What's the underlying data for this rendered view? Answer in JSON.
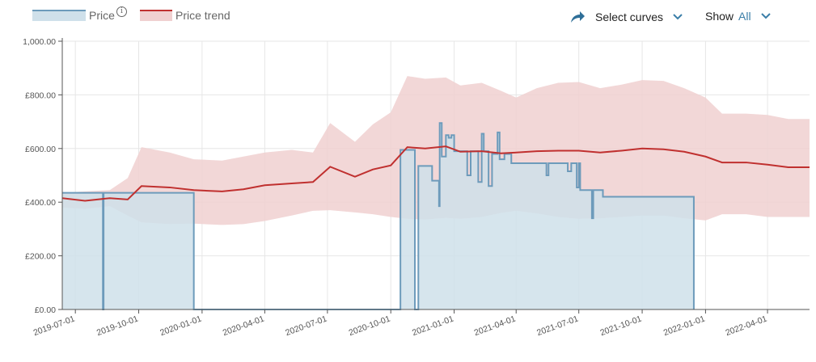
{
  "legend": {
    "price_label": "Price",
    "info_icon": "info-icon",
    "trend_label": "Price trend"
  },
  "controls": {
    "select_curves_label": "Select curves",
    "show_label": "Show",
    "show_value": "All"
  },
  "colors": {
    "price_line": "#6d9bbb",
    "price_fill": "#cfe0ea",
    "trend_line": "#c0302f",
    "trend_band": "#f0d0d0",
    "accent": "#3a7ea8"
  },
  "chart_data": {
    "type": "line",
    "x_type": "date",
    "x_range": [
      "2019-06-12",
      "2022-06-01"
    ],
    "ylim": [
      0,
      1000
    ],
    "y_ticks": [
      0,
      200,
      400,
      600,
      800,
      1000
    ],
    "y_tick_labels": [
      "£0.00",
      "£200.00",
      "£400.00",
      "£600.00",
      "£800.00",
      "1,000.00"
    ],
    "x_ticks": [
      "2019-07-01",
      "2019-10-01",
      "2020-01-01",
      "2020-04-01",
      "2020-07-01",
      "2020-10-01",
      "2021-01-01",
      "2021-04-01",
      "2021-07-01",
      "2021-10-01",
      "2022-01-01",
      "2022-04-01"
    ],
    "grid": true,
    "legend_position": "top-left",
    "series": [
      {
        "name": "Price",
        "style": "step-area",
        "points": [
          [
            "2019-06-12",
            435
          ],
          [
            "2019-08-10",
            435
          ],
          [
            "2019-08-10",
            0
          ],
          [
            "2019-08-11",
            0
          ],
          [
            "2019-08-11",
            435
          ],
          [
            "2019-12-20",
            435
          ],
          [
            "2019-12-20",
            0
          ],
          [
            "2020-10-15",
            0
          ],
          [
            "2020-10-15",
            595
          ],
          [
            "2020-11-05",
            595
          ],
          [
            "2020-11-05",
            0
          ],
          [
            "2020-11-10",
            0
          ],
          [
            "2020-11-10",
            535
          ],
          [
            "2020-11-30",
            535
          ],
          [
            "2020-11-30",
            480
          ],
          [
            "2020-12-10",
            480
          ],
          [
            "2020-12-10",
            385
          ],
          [
            "2020-12-11",
            385
          ],
          [
            "2020-12-11",
            695
          ],
          [
            "2020-12-14",
            695
          ],
          [
            "2020-12-14",
            570
          ],
          [
            "2020-12-20",
            570
          ],
          [
            "2020-12-20",
            650
          ],
          [
            "2020-12-24",
            650
          ],
          [
            "2020-12-24",
            640
          ],
          [
            "2020-12-28",
            640
          ],
          [
            "2020-12-28",
            650
          ],
          [
            "2021-01-01",
            650
          ],
          [
            "2021-01-01",
            590
          ],
          [
            "2021-01-20",
            590
          ],
          [
            "2021-01-20",
            500
          ],
          [
            "2021-01-25",
            500
          ],
          [
            "2021-01-25",
            590
          ],
          [
            "2021-02-05",
            590
          ],
          [
            "2021-02-05",
            475
          ],
          [
            "2021-02-10",
            475
          ],
          [
            "2021-02-10",
            655
          ],
          [
            "2021-02-13",
            655
          ],
          [
            "2021-02-13",
            590
          ],
          [
            "2021-02-20",
            590
          ],
          [
            "2021-02-20",
            460
          ],
          [
            "2021-02-25",
            460
          ],
          [
            "2021-02-25",
            580
          ],
          [
            "2021-03-05",
            580
          ],
          [
            "2021-03-05",
            660
          ],
          [
            "2021-03-08",
            660
          ],
          [
            "2021-03-08",
            560
          ],
          [
            "2021-03-15",
            560
          ],
          [
            "2021-03-15",
            580
          ],
          [
            "2021-03-25",
            580
          ],
          [
            "2021-03-25",
            545
          ],
          [
            "2021-04-25",
            545
          ],
          [
            "2021-04-25",
            545
          ],
          [
            "2021-05-15",
            545
          ],
          [
            "2021-05-15",
            500
          ],
          [
            "2021-05-18",
            500
          ],
          [
            "2021-05-18",
            545
          ],
          [
            "2021-06-15",
            545
          ],
          [
            "2021-06-15",
            515
          ],
          [
            "2021-06-20",
            515
          ],
          [
            "2021-06-20",
            545
          ],
          [
            "2021-06-28",
            545
          ],
          [
            "2021-06-28",
            455
          ],
          [
            "2021-07-01",
            455
          ],
          [
            "2021-07-01",
            545
          ],
          [
            "2021-07-03",
            545
          ],
          [
            "2021-07-03",
            445
          ],
          [
            "2021-07-20",
            445
          ],
          [
            "2021-07-20",
            340
          ],
          [
            "2021-07-22",
            340
          ],
          [
            "2021-07-22",
            445
          ],
          [
            "2021-08-05",
            445
          ],
          [
            "2021-08-05",
            420
          ],
          [
            "2021-12-15",
            420
          ],
          [
            "2021-12-15",
            0
          ]
        ]
      },
      {
        "name": "Price trend",
        "style": "line",
        "points": [
          [
            "2019-06-12",
            415
          ],
          [
            "2019-07-15",
            405
          ],
          [
            "2019-08-20",
            415
          ],
          [
            "2019-09-15",
            410
          ],
          [
            "2019-10-05",
            460
          ],
          [
            "2019-11-15",
            455
          ],
          [
            "2019-12-20",
            445
          ],
          [
            "2020-01-30",
            440
          ],
          [
            "2020-03-01",
            448
          ],
          [
            "2020-04-01",
            463
          ],
          [
            "2020-05-10",
            470
          ],
          [
            "2020-06-10",
            475
          ],
          [
            "2020-07-05",
            532
          ],
          [
            "2020-08-10",
            495
          ],
          [
            "2020-09-05",
            522
          ],
          [
            "2020-10-01",
            537
          ],
          [
            "2020-10-25",
            605
          ],
          [
            "2020-11-20",
            600
          ],
          [
            "2020-12-20",
            608
          ],
          [
            "2021-01-10",
            588
          ],
          [
            "2021-02-10",
            590
          ],
          [
            "2021-03-10",
            582
          ],
          [
            "2021-04-01",
            585
          ],
          [
            "2021-05-01",
            590
          ],
          [
            "2021-06-01",
            592
          ],
          [
            "2021-07-01",
            592
          ],
          [
            "2021-08-01",
            585
          ],
          [
            "2021-09-01",
            592
          ],
          [
            "2021-10-01",
            600
          ],
          [
            "2021-11-01",
            597
          ],
          [
            "2021-12-01",
            588
          ],
          [
            "2022-01-01",
            570
          ],
          [
            "2022-01-25",
            548
          ],
          [
            "2022-03-01",
            548
          ],
          [
            "2022-04-01",
            540
          ],
          [
            "2022-05-01",
            530
          ],
          [
            "2022-06-01",
            530
          ]
        ],
        "band_upper": [
          [
            "2019-06-12",
            435
          ],
          [
            "2019-07-15",
            440
          ],
          [
            "2019-08-20",
            445
          ],
          [
            "2019-09-15",
            490
          ],
          [
            "2019-10-05",
            605
          ],
          [
            "2019-11-15",
            585
          ],
          [
            "2019-12-20",
            560
          ],
          [
            "2020-01-30",
            555
          ],
          [
            "2020-03-01",
            570
          ],
          [
            "2020-04-01",
            585
          ],
          [
            "2020-05-10",
            595
          ],
          [
            "2020-06-10",
            585
          ],
          [
            "2020-07-05",
            695
          ],
          [
            "2020-08-10",
            625
          ],
          [
            "2020-09-05",
            690
          ],
          [
            "2020-10-01",
            735
          ],
          [
            "2020-10-25",
            870
          ],
          [
            "2020-11-20",
            860
          ],
          [
            "2020-12-20",
            865
          ],
          [
            "2021-01-10",
            835
          ],
          [
            "2021-02-10",
            845
          ],
          [
            "2021-03-10",
            815
          ],
          [
            "2021-04-01",
            790
          ],
          [
            "2021-05-01",
            825
          ],
          [
            "2021-06-01",
            845
          ],
          [
            "2021-07-01",
            848
          ],
          [
            "2021-08-01",
            825
          ],
          [
            "2021-09-01",
            838
          ],
          [
            "2021-10-01",
            855
          ],
          [
            "2021-11-01",
            852
          ],
          [
            "2021-12-01",
            825
          ],
          [
            "2022-01-01",
            790
          ],
          [
            "2022-01-25",
            730
          ],
          [
            "2022-03-01",
            730
          ],
          [
            "2022-04-01",
            725
          ],
          [
            "2022-05-01",
            710
          ],
          [
            "2022-06-01",
            710
          ]
        ],
        "band_lower": [
          [
            "2019-06-12",
            380
          ],
          [
            "2019-07-15",
            375
          ],
          [
            "2019-08-20",
            385
          ],
          [
            "2019-09-15",
            350
          ],
          [
            "2019-10-05",
            325
          ],
          [
            "2019-11-15",
            318
          ],
          [
            "2019-12-20",
            320
          ],
          [
            "2020-01-30",
            315
          ],
          [
            "2020-03-01",
            318
          ],
          [
            "2020-04-01",
            330
          ],
          [
            "2020-05-10",
            350
          ],
          [
            "2020-06-10",
            368
          ],
          [
            "2020-07-05",
            370
          ],
          [
            "2020-08-10",
            362
          ],
          [
            "2020-09-05",
            355
          ],
          [
            "2020-10-01",
            345
          ],
          [
            "2020-10-25",
            338
          ],
          [
            "2020-11-20",
            335
          ],
          [
            "2020-12-20",
            342
          ],
          [
            "2021-01-10",
            338
          ],
          [
            "2021-02-10",
            345
          ],
          [
            "2021-03-10",
            360
          ],
          [
            "2021-04-01",
            368
          ],
          [
            "2021-05-01",
            358
          ],
          [
            "2021-06-01",
            345
          ],
          [
            "2021-07-01",
            338
          ],
          [
            "2021-08-01",
            340
          ],
          [
            "2021-09-01",
            345
          ],
          [
            "2021-10-01",
            350
          ],
          [
            "2021-11-01",
            350
          ],
          [
            "2021-12-01",
            340
          ],
          [
            "2022-01-01",
            332
          ],
          [
            "2022-01-25",
            355
          ],
          [
            "2022-03-01",
            355
          ],
          [
            "2022-04-01",
            345
          ],
          [
            "2022-05-01",
            345
          ],
          [
            "2022-06-01",
            345
          ]
        ]
      }
    ]
  }
}
